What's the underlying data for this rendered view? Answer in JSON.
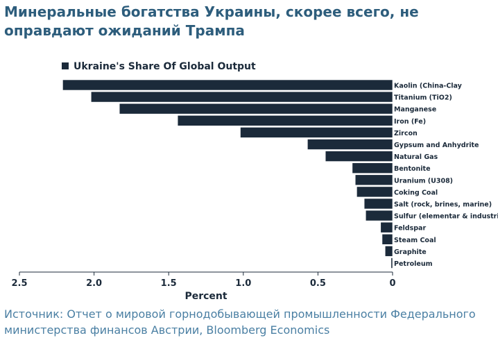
{
  "header": {
    "title": "Минеральные богатства Украины, скорее всего, не оправдают ожиданий Трампа"
  },
  "footer": {
    "source": "Источник: Отчет о мировой горнодобывающей промышленности Федерального министерства финансов Австрии, Bloomberg Economics"
  },
  "colors": {
    "bar": "#1b2a3a",
    "title": "#2d5d7c",
    "source": "#4a7fa3"
  },
  "chart_data": {
    "type": "bar",
    "orientation": "horizontal",
    "x_reversed": true,
    "title": "",
    "legend": [
      {
        "name": "Ukraine's Share Of Global Output",
        "position": "top-left"
      }
    ],
    "xlabel": "Percent",
    "ylabel": "",
    "xlim": [
      0,
      2.5
    ],
    "xticks": [
      2.5,
      2.0,
      1.5,
      1.0,
      0.5,
      0
    ],
    "xtick_labels": [
      "2.5",
      "2.0",
      "1.5",
      "1.0",
      "0.5",
      "0"
    ],
    "grid": false,
    "categories": [
      "Kaolin (China-Clay",
      "Titanium (TiO2)",
      "Manganese",
      "Iron (Fe)",
      "Zircon",
      "Gypsum and Anhydrite",
      "Natural Gas",
      "Bentonite",
      "Uranium (U308)",
      "Coking Coal",
      "Salt (rock, brines, marine)",
      "Sulfur (elementar & industrial)",
      "Feldspar",
      "Steam Coal",
      "Graphite",
      "Petroleum"
    ],
    "values": [
      2.21,
      2.02,
      1.83,
      1.44,
      1.02,
      0.57,
      0.45,
      0.27,
      0.25,
      0.24,
      0.19,
      0.18,
      0.08,
      0.07,
      0.05,
      0.01
    ]
  }
}
